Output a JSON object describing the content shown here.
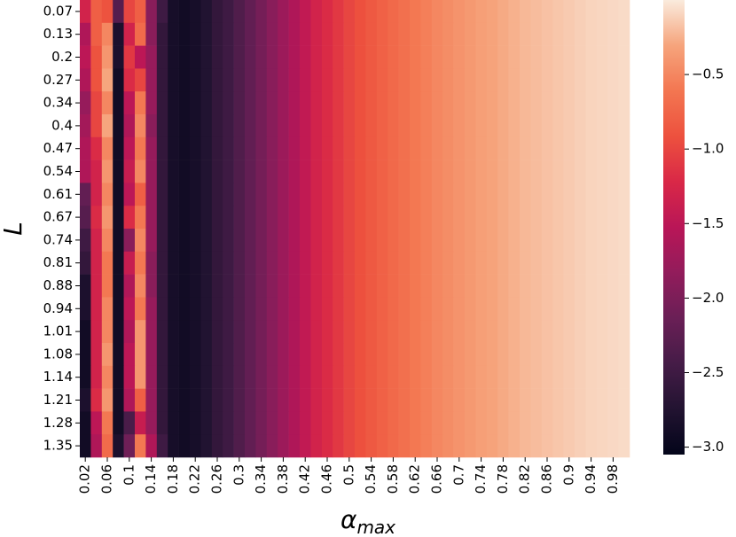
{
  "chart_data": {
    "type": "heatmap",
    "xlabel": {
      "symbol": "α",
      "subscript": "max"
    },
    "ylabel": "L",
    "x": [
      "0.02",
      null,
      "0.06",
      null,
      "0.1",
      null,
      "0.14",
      null,
      "0.18",
      null,
      "0.22",
      null,
      "0.26",
      null,
      "0.3",
      null,
      "0.34",
      null,
      "0.38",
      null,
      "0.42",
      null,
      "0.46",
      null,
      "0.5",
      null,
      "0.54",
      null,
      "0.58",
      null,
      "0.62",
      null,
      "0.66",
      null,
      "0.7",
      null,
      "0.74",
      null,
      "0.78",
      null,
      "0.82",
      null,
      "0.86",
      null,
      "0.9",
      null,
      "0.94",
      null,
      "0.98",
      null
    ],
    "y": [
      "0.07",
      "0.13",
      "0.2",
      "0.27",
      "0.34",
      "0.4",
      "0.47",
      "0.54",
      "0.61",
      "0.67",
      "0.74",
      "0.81",
      "0.88",
      "0.94",
      "1.01",
      "1.08",
      "1.14",
      "1.21",
      "1.28",
      "1.35"
    ],
    "colormap": [
      "#03051a",
      "#221331",
      "#451c47",
      "#6a1f56",
      "#921c5b",
      "#b91657",
      "#d92847",
      "#ed513e",
      "#f37651",
      "#f6a47c",
      "#faebdd"
    ],
    "clim": [
      -3.05,
      0
    ],
    "cticks": [
      {
        "value": -3,
        "label": "−3.0"
      },
      {
        "value": -2.5,
        "label": "−2.5"
      },
      {
        "value": -2,
        "label": "−2.0"
      },
      {
        "value": -1.5,
        "label": "−1.5"
      },
      {
        "value": -1,
        "label": "−1.0"
      },
      {
        "value": -0.5,
        "label": "−0.5"
      }
    ],
    "values": [
      [
        -1.3,
        -0.8,
        -0.9,
        -2.3,
        -1.0,
        -0.8,
        -1.9,
        -2.5,
        -2.85,
        -2.9,
        -2.85,
        -2.75,
        -2.6,
        -2.5,
        -2.35,
        -2.2,
        -2.05,
        -1.9,
        -1.75,
        -1.6,
        -1.45,
        -1.3,
        -1.2,
        -1.1,
        -1.0,
        -0.92,
        -0.85,
        -0.78,
        -0.72,
        -0.66,
        -0.6,
        -0.55,
        -0.5,
        -0.46,
        -0.42,
        -0.38,
        -0.34,
        -0.31,
        -0.28,
        -0.25,
        -0.22,
        -0.2,
        -0.18,
        -0.16,
        -0.14,
        -0.12,
        -0.1,
        -0.09,
        -0.08,
        -0.07
      ],
      [
        -1.6,
        -0.8,
        -0.5,
        -2.8,
        -1.3,
        -0.7,
        -1.9,
        -2.6,
        -2.85,
        -2.9,
        -2.85,
        -2.75,
        -2.6,
        -2.5,
        -2.35,
        -2.2,
        -2.05,
        -1.9,
        -1.75,
        -1.6,
        -1.45,
        -1.3,
        -1.2,
        -1.1,
        -1.0,
        -0.92,
        -0.85,
        -0.78,
        -0.72,
        -0.66,
        -0.6,
        -0.55,
        -0.5,
        -0.46,
        -0.42,
        -0.38,
        -0.34,
        -0.31,
        -0.28,
        -0.25,
        -0.22,
        -0.2,
        -0.18,
        -0.16,
        -0.14,
        -0.12,
        -0.1,
        -0.09,
        -0.08,
        -0.07
      ],
      [
        -1.5,
        -0.9,
        -0.4,
        -2.8,
        -1.1,
        -1.5,
        -1.8,
        -2.6,
        -2.85,
        -2.9,
        -2.85,
        -2.75,
        -2.6,
        -2.5,
        -2.35,
        -2.2,
        -2.05,
        -1.9,
        -1.75,
        -1.6,
        -1.45,
        -1.3,
        -1.2,
        -1.1,
        -1.0,
        -0.92,
        -0.85,
        -0.78,
        -0.72,
        -0.66,
        -0.6,
        -0.55,
        -0.5,
        -0.46,
        -0.42,
        -0.38,
        -0.34,
        -0.31,
        -0.28,
        -0.25,
        -0.22,
        -0.2,
        -0.18,
        -0.16,
        -0.14,
        -0.12,
        -0.1,
        -0.09,
        -0.08,
        -0.07
      ],
      [
        -1.6,
        -0.9,
        -0.3,
        -2.9,
        -1.2,
        -1.0,
        -1.8,
        -2.6,
        -2.85,
        -2.9,
        -2.85,
        -2.75,
        -2.6,
        -2.5,
        -2.35,
        -2.2,
        -2.05,
        -1.9,
        -1.75,
        -1.6,
        -1.45,
        -1.3,
        -1.2,
        -1.1,
        -1.0,
        -0.92,
        -0.85,
        -0.78,
        -0.72,
        -0.66,
        -0.6,
        -0.55,
        -0.5,
        -0.46,
        -0.42,
        -0.38,
        -0.34,
        -0.31,
        -0.28,
        -0.25,
        -0.22,
        -0.2,
        -0.18,
        -0.16,
        -0.14,
        -0.12,
        -0.1,
        -0.09,
        -0.08,
        -0.07
      ],
      [
        -1.8,
        -1.0,
        -0.5,
        -2.9,
        -1.5,
        -0.6,
        -1.8,
        -2.6,
        -2.85,
        -2.9,
        -2.85,
        -2.75,
        -2.6,
        -2.5,
        -2.35,
        -2.2,
        -2.05,
        -1.9,
        -1.75,
        -1.6,
        -1.45,
        -1.3,
        -1.2,
        -1.1,
        -1.0,
        -0.92,
        -0.85,
        -0.78,
        -0.72,
        -0.66,
        -0.6,
        -0.55,
        -0.5,
        -0.46,
        -0.42,
        -0.38,
        -0.34,
        -0.31,
        -0.28,
        -0.25,
        -0.22,
        -0.2,
        -0.18,
        -0.16,
        -0.14,
        -0.12,
        -0.1,
        -0.09,
        -0.08,
        -0.07
      ],
      [
        -1.7,
        -1.0,
        -0.3,
        -2.9,
        -1.6,
        -0.5,
        -1.9,
        -2.6,
        -2.85,
        -2.9,
        -2.85,
        -2.75,
        -2.6,
        -2.5,
        -2.35,
        -2.2,
        -2.05,
        -1.9,
        -1.75,
        -1.6,
        -1.45,
        -1.3,
        -1.2,
        -1.1,
        -1.0,
        -0.92,
        -0.85,
        -0.78,
        -0.72,
        -0.66,
        -0.6,
        -0.55,
        -0.5,
        -0.46,
        -0.42,
        -0.38,
        -0.34,
        -0.31,
        -0.28,
        -0.25,
        -0.22,
        -0.2,
        -0.18,
        -0.16,
        -0.14,
        -0.12,
        -0.1,
        -0.09,
        -0.08,
        -0.07
      ],
      [
        -1.6,
        -1.2,
        -0.5,
        -2.9,
        -1.5,
        -0.6,
        -1.8,
        -2.6,
        -2.85,
        -2.9,
        -2.85,
        -2.75,
        -2.6,
        -2.5,
        -2.35,
        -2.2,
        -2.05,
        -1.9,
        -1.75,
        -1.6,
        -1.45,
        -1.3,
        -1.2,
        -1.1,
        -1.0,
        -0.92,
        -0.85,
        -0.78,
        -0.72,
        -0.66,
        -0.6,
        -0.55,
        -0.5,
        -0.46,
        -0.42,
        -0.38,
        -0.34,
        -0.31,
        -0.28,
        -0.25,
        -0.22,
        -0.2,
        -0.18,
        -0.16,
        -0.14,
        -0.12,
        -0.1,
        -0.09,
        -0.08,
        -0.07
      ],
      [
        -1.6,
        -1.3,
        -0.4,
        -2.9,
        -1.4,
        -0.5,
        -1.8,
        -2.6,
        -2.85,
        -2.9,
        -2.85,
        -2.75,
        -2.6,
        -2.5,
        -2.35,
        -2.2,
        -2.05,
        -1.9,
        -1.75,
        -1.6,
        -1.45,
        -1.3,
        -1.2,
        -1.1,
        -1.0,
        -0.92,
        -0.85,
        -0.78,
        -0.72,
        -0.66,
        -0.6,
        -0.55,
        -0.5,
        -0.46,
        -0.42,
        -0.38,
        -0.34,
        -0.31,
        -0.28,
        -0.25,
        -0.22,
        -0.2,
        -0.18,
        -0.16,
        -0.14,
        -0.12,
        -0.1,
        -0.09,
        -0.08,
        -0.07
      ],
      [
        -2.2,
        -1.3,
        -0.5,
        -2.9,
        -1.5,
        -0.8,
        -1.8,
        -2.6,
        -2.85,
        -2.9,
        -2.85,
        -2.75,
        -2.6,
        -2.5,
        -2.35,
        -2.2,
        -2.05,
        -1.9,
        -1.75,
        -1.6,
        -1.45,
        -1.3,
        -1.2,
        -1.1,
        -1.0,
        -0.92,
        -0.85,
        -0.78,
        -0.72,
        -0.66,
        -0.6,
        -0.55,
        -0.5,
        -0.46,
        -0.42,
        -0.38,
        -0.34,
        -0.31,
        -0.28,
        -0.25,
        -0.22,
        -0.2,
        -0.18,
        -0.16,
        -0.14,
        -0.12,
        -0.1,
        -0.09,
        -0.08,
        -0.07
      ],
      [
        -2.3,
        -1.2,
        -0.4,
        -2.9,
        -1.2,
        -0.6,
        -1.8,
        -2.6,
        -2.85,
        -2.9,
        -2.85,
        -2.75,
        -2.6,
        -2.5,
        -2.35,
        -2.2,
        -2.05,
        -1.9,
        -1.75,
        -1.6,
        -1.45,
        -1.3,
        -1.2,
        -1.1,
        -1.0,
        -0.92,
        -0.85,
        -0.78,
        -0.72,
        -0.66,
        -0.6,
        -0.55,
        -0.5,
        -0.46,
        -0.42,
        -0.38,
        -0.34,
        -0.31,
        -0.28,
        -0.25,
        -0.22,
        -0.2,
        -0.18,
        -0.16,
        -0.14,
        -0.12,
        -0.1,
        -0.09,
        -0.08,
        -0.07
      ],
      [
        -2.5,
        -1.3,
        -0.5,
        -2.9,
        -1.9,
        -0.5,
        -1.8,
        -2.6,
        -2.85,
        -2.9,
        -2.85,
        -2.75,
        -2.6,
        -2.5,
        -2.35,
        -2.2,
        -2.05,
        -1.9,
        -1.75,
        -1.6,
        -1.45,
        -1.3,
        -1.2,
        -1.1,
        -1.0,
        -0.92,
        -0.85,
        -0.78,
        -0.72,
        -0.66,
        -0.6,
        -0.55,
        -0.5,
        -0.46,
        -0.42,
        -0.38,
        -0.34,
        -0.31,
        -0.28,
        -0.25,
        -0.22,
        -0.2,
        -0.18,
        -0.16,
        -0.14,
        -0.12,
        -0.1,
        -0.09,
        -0.08,
        -0.07
      ],
      [
        -2.6,
        -1.3,
        -0.6,
        -2.9,
        -1.4,
        -0.6,
        -1.9,
        -2.6,
        -2.85,
        -2.9,
        -2.85,
        -2.75,
        -2.6,
        -2.5,
        -2.35,
        -2.2,
        -2.05,
        -1.9,
        -1.75,
        -1.6,
        -1.45,
        -1.3,
        -1.2,
        -1.1,
        -1.0,
        -0.92,
        -0.85,
        -0.78,
        -0.72,
        -0.66,
        -0.6,
        -0.55,
        -0.5,
        -0.46,
        -0.42,
        -0.38,
        -0.34,
        -0.31,
        -0.28,
        -0.25,
        -0.22,
        -0.2,
        -0.18,
        -0.16,
        -0.14,
        -0.12,
        -0.1,
        -0.09,
        -0.08,
        -0.07
      ],
      [
        -2.8,
        -1.3,
        -0.6,
        -2.9,
        -1.6,
        -0.5,
        -1.9,
        -2.6,
        -2.85,
        -2.9,
        -2.85,
        -2.75,
        -2.6,
        -2.5,
        -2.35,
        -2.2,
        -2.05,
        -1.9,
        -1.75,
        -1.6,
        -1.45,
        -1.3,
        -1.2,
        -1.1,
        -1.0,
        -0.92,
        -0.85,
        -0.78,
        -0.72,
        -0.66,
        -0.6,
        -0.55,
        -0.5,
        -0.46,
        -0.42,
        -0.38,
        -0.34,
        -0.31,
        -0.28,
        -0.25,
        -0.22,
        -0.2,
        -0.18,
        -0.16,
        -0.14,
        -0.12,
        -0.1,
        -0.09,
        -0.08,
        -0.07
      ],
      [
        -2.8,
        -1.3,
        -0.5,
        -2.9,
        -1.5,
        -0.6,
        -1.8,
        -2.6,
        -2.85,
        -2.9,
        -2.85,
        -2.75,
        -2.6,
        -2.5,
        -2.35,
        -2.2,
        -2.05,
        -1.9,
        -1.75,
        -1.6,
        -1.45,
        -1.3,
        -1.2,
        -1.1,
        -1.0,
        -0.92,
        -0.85,
        -0.78,
        -0.72,
        -0.66,
        -0.6,
        -0.55,
        -0.5,
        -0.46,
        -0.42,
        -0.38,
        -0.34,
        -0.31,
        -0.28,
        -0.25,
        -0.22,
        -0.2,
        -0.18,
        -0.16,
        -0.14,
        -0.12,
        -0.1,
        -0.09,
        -0.08,
        -0.07
      ],
      [
        -2.9,
        -1.3,
        -0.5,
        -2.9,
        -1.6,
        -0.4,
        -1.8,
        -2.6,
        -2.85,
        -2.9,
        -2.85,
        -2.75,
        -2.6,
        -2.5,
        -2.35,
        -2.2,
        -2.05,
        -1.9,
        -1.75,
        -1.6,
        -1.45,
        -1.3,
        -1.2,
        -1.1,
        -1.0,
        -0.92,
        -0.85,
        -0.78,
        -0.72,
        -0.66,
        -0.6,
        -0.55,
        -0.5,
        -0.46,
        -0.42,
        -0.38,
        -0.34,
        -0.31,
        -0.28,
        -0.25,
        -0.22,
        -0.2,
        -0.18,
        -0.16,
        -0.14,
        -0.12,
        -0.1,
        -0.09,
        -0.08,
        -0.07
      ],
      [
        -2.9,
        -1.3,
        -0.4,
        -2.9,
        -1.5,
        -0.4,
        -1.8,
        -2.6,
        -2.85,
        -2.9,
        -2.85,
        -2.75,
        -2.6,
        -2.5,
        -2.35,
        -2.2,
        -2.05,
        -1.9,
        -1.75,
        -1.6,
        -1.45,
        -1.3,
        -1.2,
        -1.1,
        -1.0,
        -0.92,
        -0.85,
        -0.78,
        -0.72,
        -0.66,
        -0.6,
        -0.55,
        -0.5,
        -0.46,
        -0.42,
        -0.38,
        -0.34,
        -0.31,
        -0.28,
        -0.25,
        -0.22,
        -0.2,
        -0.18,
        -0.16,
        -0.14,
        -0.12,
        -0.1,
        -0.09,
        -0.08,
        -0.07
      ],
      [
        -2.9,
        -1.3,
        -0.5,
        -2.9,
        -1.5,
        -0.4,
        -1.8,
        -2.6,
        -2.85,
        -2.9,
        -2.85,
        -2.75,
        -2.6,
        -2.5,
        -2.35,
        -2.2,
        -2.05,
        -1.9,
        -1.75,
        -1.6,
        -1.45,
        -1.3,
        -1.2,
        -1.1,
        -1.0,
        -0.92,
        -0.85,
        -0.78,
        -0.72,
        -0.66,
        -0.6,
        -0.55,
        -0.5,
        -0.46,
        -0.42,
        -0.38,
        -0.34,
        -0.31,
        -0.28,
        -0.25,
        -0.22,
        -0.2,
        -0.18,
        -0.16,
        -0.14,
        -0.12,
        -0.1,
        -0.09,
        -0.08,
        -0.07
      ],
      [
        -2.8,
        -1.2,
        -0.4,
        -2.9,
        -1.6,
        -0.8,
        -1.8,
        -2.6,
        -2.85,
        -2.9,
        -2.85,
        -2.75,
        -2.6,
        -2.5,
        -2.35,
        -2.2,
        -2.05,
        -1.9,
        -1.75,
        -1.6,
        -1.45,
        -1.3,
        -1.2,
        -1.1,
        -1.0,
        -0.92,
        -0.85,
        -0.78,
        -0.72,
        -0.66,
        -0.6,
        -0.55,
        -0.5,
        -0.46,
        -0.42,
        -0.38,
        -0.34,
        -0.31,
        -0.28,
        -0.25,
        -0.22,
        -0.2,
        -0.18,
        -0.16,
        -0.14,
        -0.12,
        -0.1,
        -0.09,
        -0.08,
        -0.07
      ],
      [
        -2.9,
        -1.5,
        -0.6,
        -2.9,
        -2.4,
        -1.4,
        -1.8,
        -2.6,
        -2.85,
        -2.9,
        -2.85,
        -2.75,
        -2.6,
        -2.5,
        -2.35,
        -2.2,
        -2.05,
        -1.9,
        -1.75,
        -1.6,
        -1.45,
        -1.3,
        -1.2,
        -1.1,
        -1.0,
        -0.92,
        -0.85,
        -0.78,
        -0.72,
        -0.66,
        -0.6,
        -0.55,
        -0.5,
        -0.46,
        -0.42,
        -0.38,
        -0.34,
        -0.31,
        -0.28,
        -0.25,
        -0.22,
        -0.2,
        -0.18,
        -0.16,
        -0.14,
        -0.12,
        -0.1,
        -0.09,
        -0.08,
        -0.07
      ],
      [
        -2.9,
        -1.6,
        -0.7,
        -2.8,
        -2.1,
        -0.6,
        -1.6,
        -2.5,
        -2.85,
        -2.9,
        -2.85,
        -2.75,
        -2.6,
        -2.5,
        -2.35,
        -2.2,
        -2.05,
        -1.9,
        -1.75,
        -1.6,
        -1.45,
        -1.3,
        -1.2,
        -1.1,
        -1.0,
        -0.92,
        -0.85,
        -0.78,
        -0.72,
        -0.66,
        -0.6,
        -0.55,
        -0.5,
        -0.46,
        -0.42,
        -0.38,
        -0.34,
        -0.31,
        -0.28,
        -0.25,
        -0.22,
        -0.2,
        -0.18,
        -0.16,
        -0.14,
        -0.12,
        -0.1,
        -0.09,
        -0.08,
        -0.07
      ]
    ]
  }
}
